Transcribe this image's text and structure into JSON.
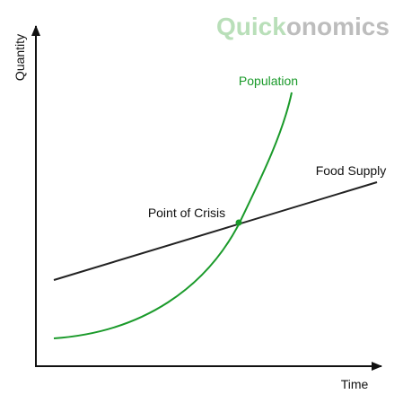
{
  "brand": {
    "parts": [
      "Quick",
      "onomics"
    ]
  },
  "axes": {
    "y_label": "Quantity",
    "x_label": "Time"
  },
  "curves": {
    "population": "Population",
    "food_supply": "Food Supply"
  },
  "annotation": "Point of Crisis"
}
